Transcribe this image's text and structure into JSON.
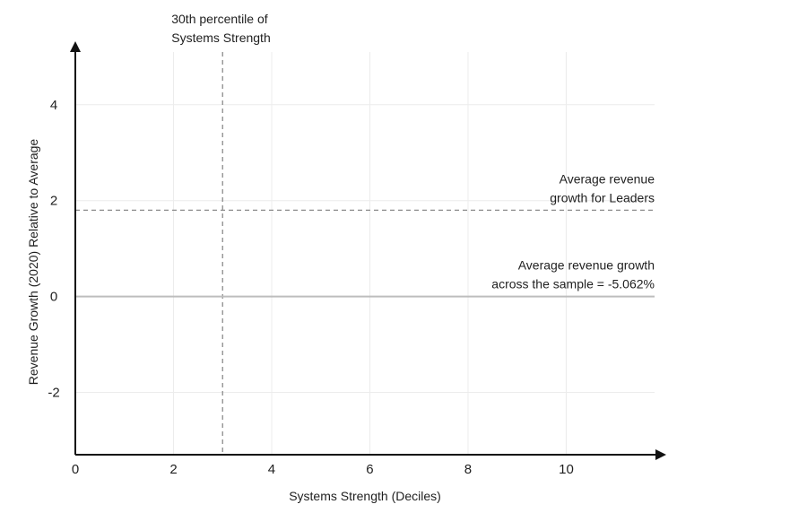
{
  "chart_data": {
    "type": "line",
    "title": "",
    "xlabel": "Systems Strength (Deciles)",
    "ylabel": "Revenue Growth (2020)  Relative to Average",
    "xlim": [
      0,
      11.8
    ],
    "ylim": [
      -3.3,
      5.1
    ],
    "x_ticks": [
      0,
      2,
      4,
      6,
      8,
      10
    ],
    "y_ticks": [
      -2,
      0,
      2,
      4
    ],
    "grid": true,
    "series": [],
    "reference_lines": [
      {
        "orientation": "vertical",
        "x": 3,
        "style": "dashed",
        "label_lines": [
          "30th percentile of",
          "Systems Strength"
        ]
      },
      {
        "orientation": "horizontal",
        "y": 1.8,
        "style": "dashed",
        "label_lines": [
          "Average revenue",
          "growth for Leaders"
        ]
      },
      {
        "orientation": "horizontal",
        "y": 0,
        "style": "solid",
        "label_lines": [
          "Average revenue growth",
          "across the sample = -5.062%"
        ]
      }
    ],
    "colors": {
      "axis": "#111111",
      "grid": "#ececec",
      "dashed_line": "#8c8c8c",
      "zero_line": "#bdbdbd",
      "text": "#1f1f1f"
    }
  }
}
